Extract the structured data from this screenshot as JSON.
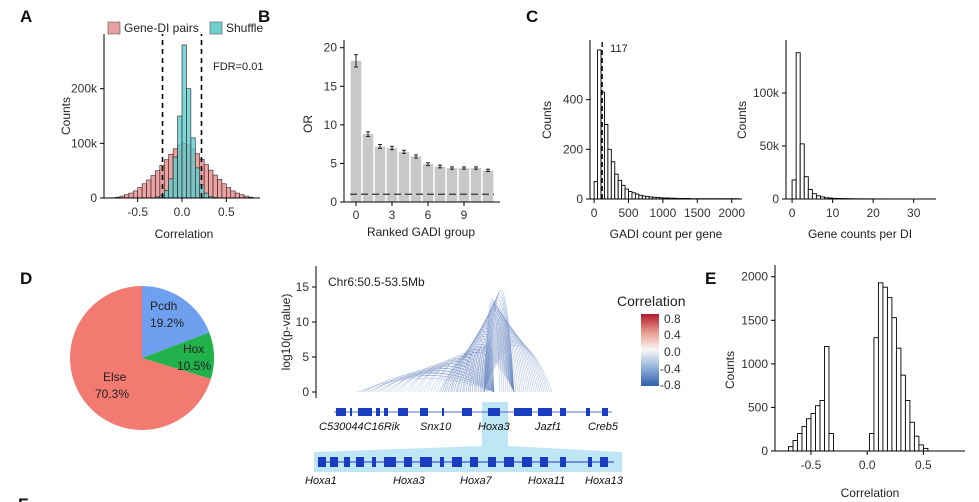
{
  "panels": {
    "A": "A",
    "B": "B",
    "C": "C",
    "D": "D",
    "E": "E",
    "F": "F"
  },
  "chart_data": [
    {
      "id": "A",
      "type": "bar",
      "title": "",
      "xlabel": "Correlation",
      "ylabel": "Counts",
      "xlim": [
        -0.88,
        0.88
      ],
      "ylim": [
        0,
        300000
      ],
      "xticks": [
        -0.5,
        0.0,
        0.5
      ],
      "xtick_labels": [
        "-0.5",
        "0.0",
        "0.5"
      ],
      "yticks": [
        0,
        100000,
        200000
      ],
      "ytick_labels": [
        "0",
        "100k",
        "200k"
      ],
      "bin_start": -0.8,
      "bin_width": 0.05,
      "legend": [
        {
          "name": "Gene-DI pairs",
          "color": "#E8A0A0"
        },
        {
          "name": "Shuffle",
          "color": "#6FD0D0"
        }
      ],
      "annotation": "FDR=0.01",
      "thresholds": [
        -0.22,
        0.22
      ],
      "series": [
        {
          "name": "Gene-DI pairs",
          "values": [
            500,
            1500,
            3500,
            6000,
            9000,
            13000,
            19000,
            26000,
            33000,
            41000,
            50000,
            60000,
            70000,
            80000,
            90000,
            97000,
            100000,
            97000,
            90000,
            81000,
            71000,
            61000,
            51000,
            42000,
            34000,
            26000,
            19000,
            13000,
            9000,
            6000,
            3500,
            1500
          ]
        },
        {
          "name": "Shuffle",
          "values": [
            0,
            0,
            0,
            0,
            0,
            0,
            0,
            0,
            0,
            0,
            2000,
            5000,
            14000,
            35000,
            75000,
            150000,
            280000,
            200000,
            110000,
            55000,
            24000,
            9000,
            3000,
            800,
            0,
            0,
            0,
            0,
            0,
            0,
            0,
            0
          ]
        }
      ]
    },
    {
      "id": "B",
      "type": "bar",
      "xlabel": "Ranked GADI group",
      "ylabel": "OR",
      "xlim": [
        -1,
        12
      ],
      "ylim": [
        0,
        21
      ],
      "xticks": [
        0,
        3,
        6,
        9
      ],
      "xtick_labels": [
        "0",
        "3",
        "6",
        "9"
      ],
      "yticks": [
        0,
        5,
        10,
        15,
        20
      ],
      "ytick_labels": [
        "0",
        "5",
        "10",
        "15",
        "20"
      ],
      "reference_line": 1,
      "categories": [
        0,
        1,
        2,
        3,
        4,
        5,
        6,
        7,
        8,
        9,
        10,
        11
      ],
      "values": [
        18.3,
        8.8,
        7.2,
        7.0,
        6.5,
        5.9,
        4.9,
        4.6,
        4.4,
        4.4,
        4.4,
        4.1
      ],
      "errors": [
        0.8,
        0.3,
        0.25,
        0.22,
        0.2,
        0.2,
        0.18,
        0.18,
        0.15,
        0.15,
        0.15,
        0.15
      ]
    },
    {
      "id": "C1",
      "type": "bar",
      "xlabel": "GADI count per gene",
      "ylabel": "Counts",
      "xlim": [
        -60,
        2150
      ],
      "ylim": [
        0,
        640
      ],
      "xticks": [
        0,
        500,
        1000,
        1500,
        2000
      ],
      "xtick_labels": [
        "0",
        "500",
        "1000",
        "1500",
        "2000"
      ],
      "yticks": [
        0,
        200,
        400
      ],
      "ytick_labels": [
        "0",
        "200",
        "400"
      ],
      "bin_start": 0,
      "bin_width": 50,
      "median": 117,
      "annotation": "117",
      "values": [
        70,
        600,
        430,
        300,
        200,
        150,
        100,
        75,
        55,
        40,
        30,
        25,
        20,
        15,
        12,
        10,
        8,
        7,
        6,
        5,
        4,
        4,
        3,
        3,
        2,
        2,
        2,
        2,
        1,
        1,
        1,
        1,
        1,
        1,
        1,
        1,
        1,
        1,
        1,
        1,
        1,
        1
      ]
    },
    {
      "id": "C2",
      "type": "bar",
      "xlabel": "Gene counts per DI",
      "ylabel": "Counts",
      "xlim": [
        -1.5,
        35.5
      ],
      "ylim": [
        0,
        150000
      ],
      "xticks": [
        0,
        10,
        20,
        30
      ],
      "xtick_labels": [
        "0",
        "10",
        "20",
        "30"
      ],
      "yticks": [
        0,
        50000,
        100000
      ],
      "ytick_labels": [
        "0",
        "50k",
        "100k"
      ],
      "bin_start": 0,
      "bin_width": 1,
      "values": [
        18000,
        138000,
        52000,
        21000,
        9000,
        5000,
        3000,
        2000,
        1200,
        900,
        600,
        500,
        400,
        300,
        250,
        200,
        180,
        160,
        140,
        120,
        100,
        90,
        80,
        70,
        60,
        50,
        40,
        35,
        30,
        25,
        20,
        15,
        10,
        8
      ]
    },
    {
      "id": "D",
      "type": "pie",
      "slices": [
        {
          "name": "Pcdh",
          "label": "19.2%",
          "value": 19.2,
          "color": "#6FA0F0"
        },
        {
          "name": "Hox",
          "label": "10.5%",
          "value": 10.5,
          "color": "#22B24C"
        },
        {
          "name": "Else",
          "label": "70.3%",
          "value": 70.3,
          "color": "#F27A70"
        }
      ]
    },
    {
      "id": "arc",
      "type": "line",
      "title": "Chr6:50.5-53.5Mb",
      "ylabel": "log10(p-value)",
      "ylim": [
        0,
        16
      ],
      "yticks": [
        0,
        5,
        10,
        15
      ],
      "ytick_labels": [
        "0",
        "5",
        "10",
        "15"
      ],
      "legend_title": "Correlation",
      "colorbar_ticks": [
        "0.8",
        "0.4",
        "0.0",
        "-0.4",
        "-0.8"
      ],
      "genes": [
        "C530044C16Rik",
        "Snx10",
        "Hoxa3",
        "Jazf1",
        "Creb5"
      ],
      "zoom_genes": [
        "Hoxa1",
        "Hoxa3",
        "Hoxa7",
        "Hoxa11",
        "Hoxa13"
      ]
    },
    {
      "id": "E",
      "type": "bar",
      "xlabel": "Correlation",
      "ylabel": "Counts",
      "xlim": [
        -0.82,
        0.87
      ],
      "ylim": [
        0,
        2100
      ],
      "xticks": [
        -0.5,
        0.0,
        0.5
      ],
      "xtick_labels": [
        "-0.5",
        "0.0",
        "0.5"
      ],
      "yticks": [
        0,
        500,
        1000,
        1500,
        2000
      ],
      "ytick_labels": [
        "0",
        "500",
        "1000",
        "1500",
        "2000"
      ],
      "bin_start": -0.7,
      "bin_width": 0.04,
      "values": [
        50,
        120,
        200,
        280,
        370,
        430,
        520,
        580,
        1200,
        200,
        0,
        0,
        0,
        0,
        0,
        0,
        0,
        0,
        200,
        1300,
        1930,
        1880,
        1760,
        1530,
        1180,
        870,
        580,
        330,
        170,
        70,
        30
      ]
    }
  ]
}
